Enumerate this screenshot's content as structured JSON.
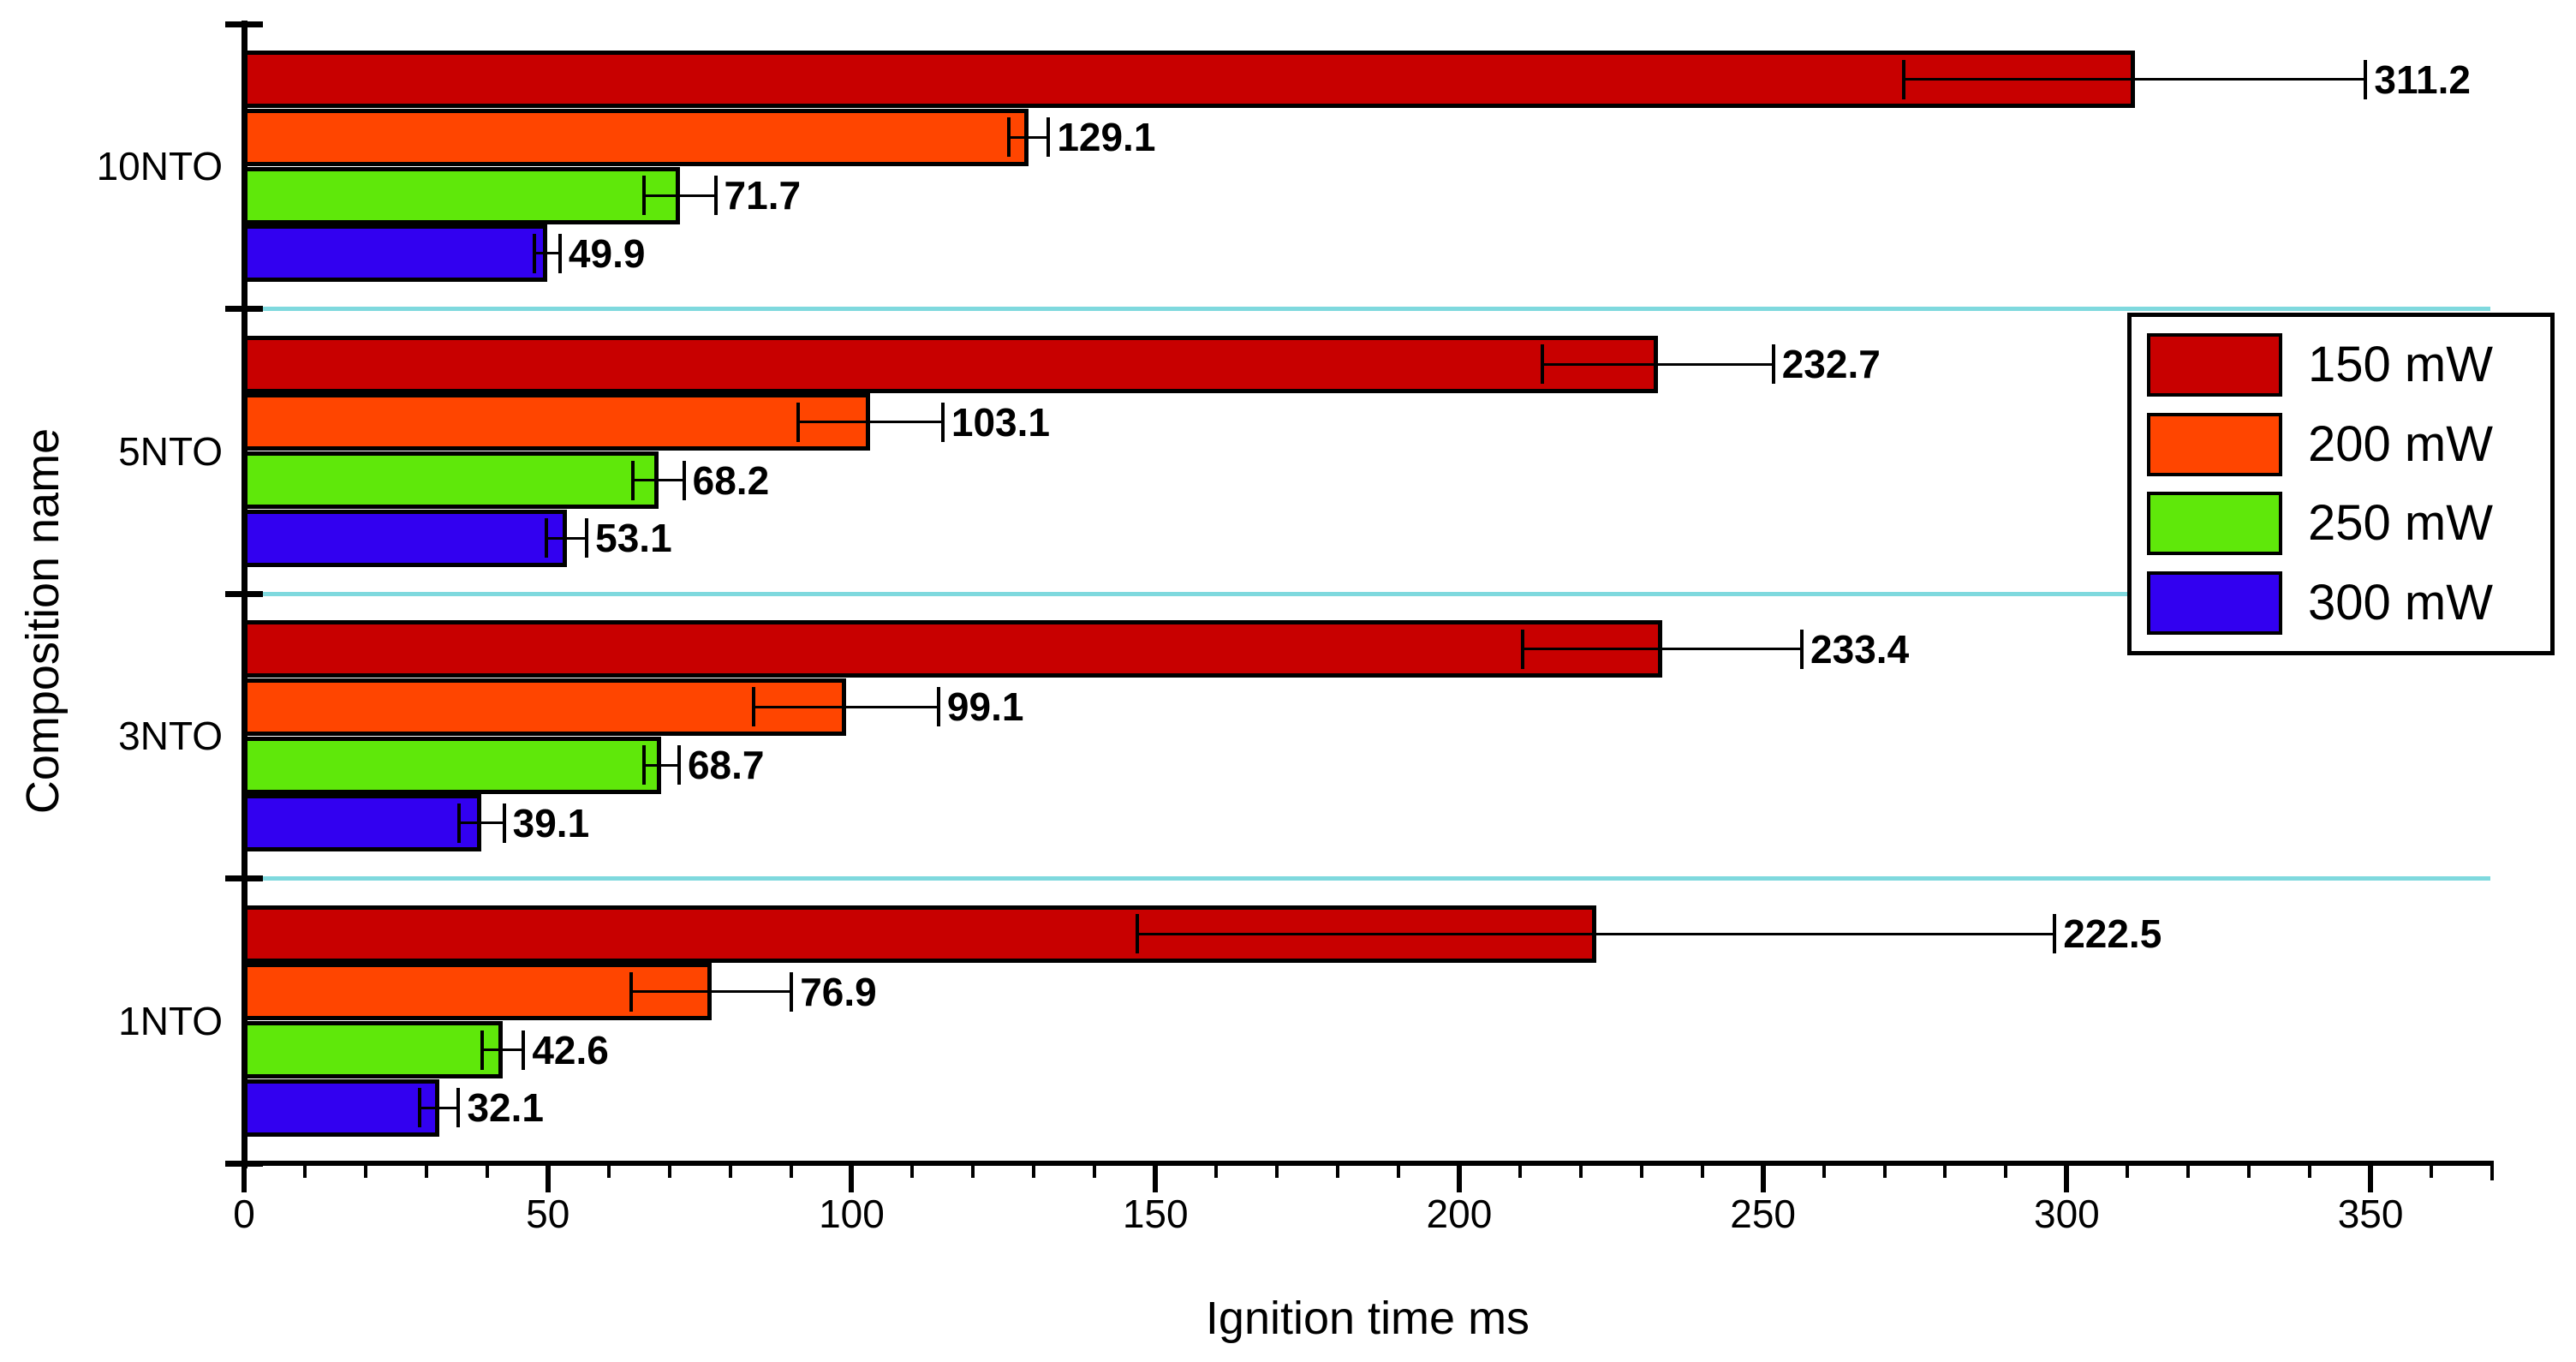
{
  "chart_data": {
    "type": "bar",
    "orientation": "horizontal",
    "xlabel": "Ignition time ms",
    "ylabel": "Composition name",
    "xlim": [
      0,
      370
    ],
    "x_major_ticks": [
      0,
      50,
      100,
      150,
      200,
      250,
      300,
      350
    ],
    "x_minor_tick_step": 10,
    "grid": "off",
    "group_separator_color": "#7FD9DE",
    "categories": [
      "10NTO",
      "5NTO",
      "3NTO",
      "1NTO"
    ],
    "series": [
      {
        "name": "150 mW",
        "color": "#C80000",
        "values": [
          311.2,
          232.7,
          233.4,
          222.5
        ],
        "errors": [
          38.0,
          19.0,
          23.0,
          75.5
        ]
      },
      {
        "name": "200 mW",
        "color": "#FF4500",
        "values": [
          129.1,
          103.1,
          99.1,
          76.9
        ],
        "errors": [
          3.3,
          11.9,
          15.2,
          13.2
        ]
      },
      {
        "name": "250 mW",
        "color": "#5FE80A",
        "values": [
          71.7,
          68.2,
          68.7,
          42.6
        ],
        "errors": [
          5.9,
          4.2,
          2.9,
          3.4
        ]
      },
      {
        "name": "300 mW",
        "color": "#3200F0",
        "values": [
          49.9,
          53.1,
          39.1,
          32.1
        ],
        "errors": [
          2.1,
          3.3,
          3.7,
          3.2
        ]
      }
    ],
    "value_label_decimals": 1,
    "legend": {
      "position": "upper-right",
      "entries": [
        "150 mW",
        "200 mW",
        "250 mW",
        "300 mW"
      ]
    }
  }
}
